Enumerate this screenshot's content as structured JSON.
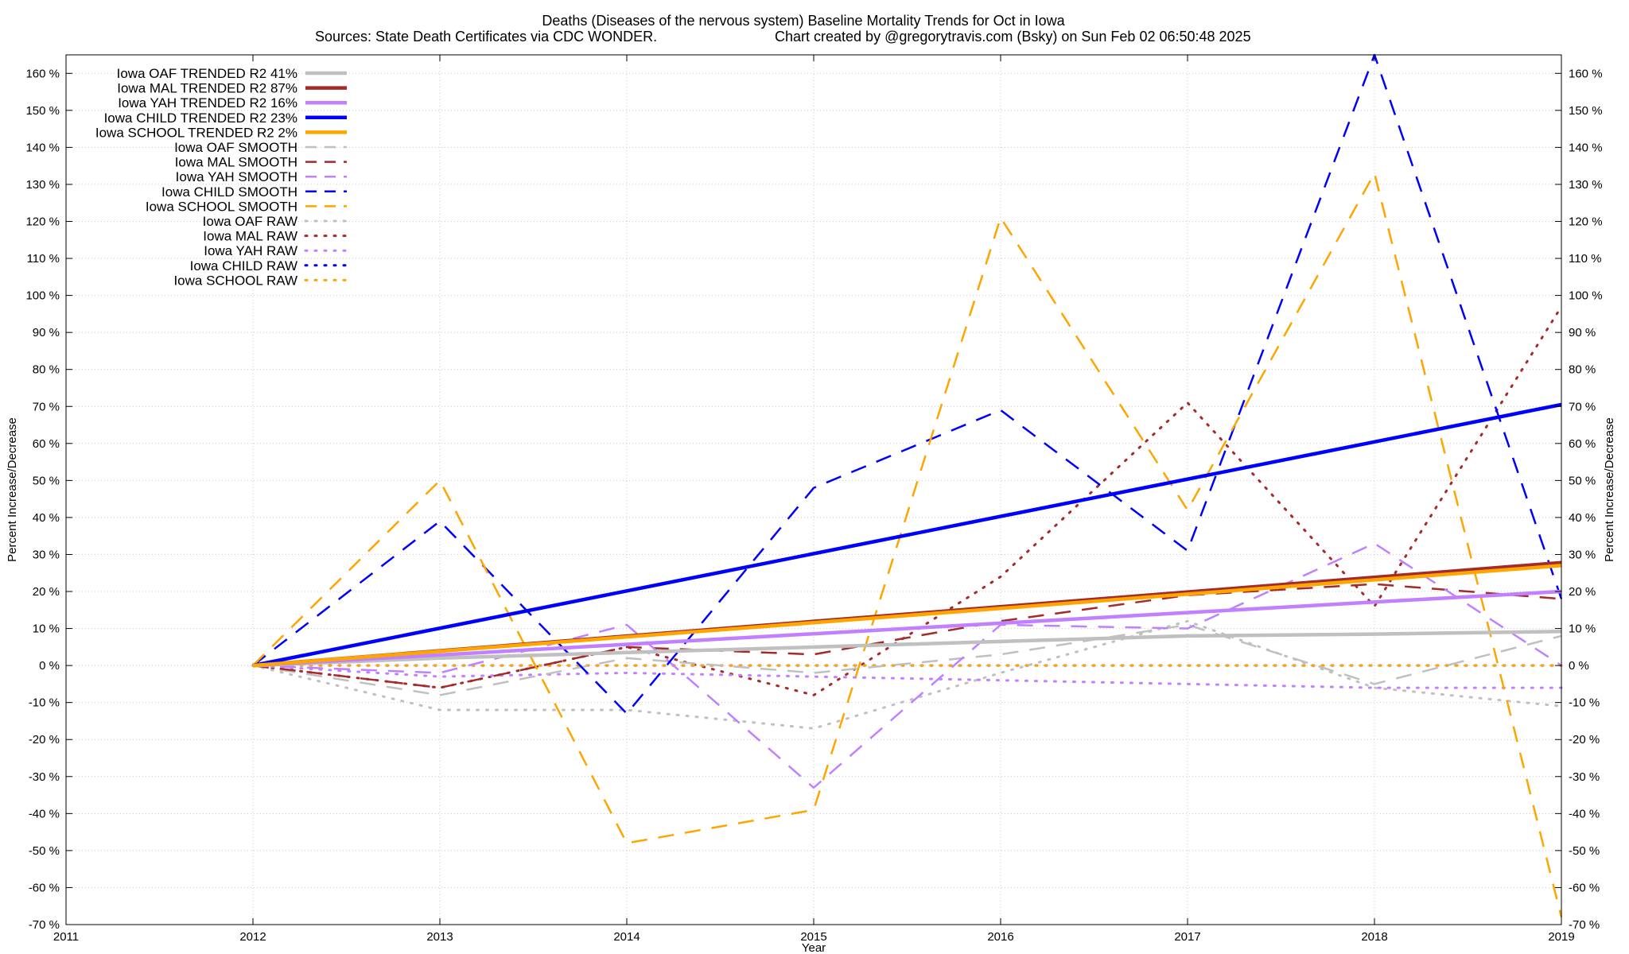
{
  "chart_data": {
    "type": "line",
    "title": "Deaths (Diseases of the nervous system)  Baseline Mortality Trends for Oct in Iowa",
    "subtitle_left": "Sources: State Death Certificates via CDC WONDER.",
    "subtitle_right": "Chart created by @gregorytravis.com (Bsky) on Sun Feb 02 06:50:48 2025",
    "xlabel": "Year",
    "ylabel_left": "Percent Increase/Decrease",
    "ylabel_right": "Percent Increase/Decrease",
    "xlim": [
      2011,
      2019
    ],
    "ylim": [
      -70,
      165
    ],
    "x_ticks": [
      2011,
      2012,
      2013,
      2014,
      2015,
      2016,
      2017,
      2018,
      2019
    ],
    "y_ticks": [
      -70,
      -60,
      -50,
      -40,
      -30,
      -20,
      -10,
      0,
      10,
      20,
      30,
      40,
      50,
      60,
      70,
      80,
      90,
      100,
      110,
      120,
      130,
      140,
      150,
      160
    ],
    "y_tick_suffix": " %",
    "grid": true,
    "legend_position": "top-left",
    "series": [
      {
        "name": "Iowa OAF TRENDED R2  41%",
        "style": "solid",
        "color": "#c0c0c0",
        "x": [
          2012,
          2013,
          2014,
          2015,
          2016,
          2017,
          2018,
          2019
        ],
        "y": [
          0,
          2,
          3.5,
          5,
          6.5,
          8,
          8.5,
          9.2
        ]
      },
      {
        "name": "Iowa MAL TRENDED R2  87%",
        "style": "solid",
        "color": "#a52a2a",
        "x": [
          2012,
          2019
        ],
        "y": [
          0,
          27.8
        ]
      },
      {
        "name": "Iowa YAH TRENDED R2  16%",
        "style": "solid",
        "color": "#c080ff",
        "x": [
          2012,
          2019
        ],
        "y": [
          0,
          20
        ]
      },
      {
        "name": "Iowa CHILD TRENDED R2  23%",
        "style": "solid",
        "color": "#0000ff",
        "x": [
          2012,
          2019
        ],
        "y": [
          0,
          70.5
        ]
      },
      {
        "name": "Iowa SCHOOL TRENDED R2   2%",
        "style": "solid",
        "color": "#ffa500",
        "x": [
          2012,
          2019
        ],
        "y": [
          0,
          27
        ]
      },
      {
        "name": "Iowa OAF SMOOTH",
        "style": "dashed",
        "color": "#c0c0c0",
        "x": [
          2012,
          2013,
          2014,
          2015,
          2016,
          2017,
          2018,
          2019
        ],
        "y": [
          0,
          -8,
          2,
          -2,
          3,
          11,
          -5,
          8
        ]
      },
      {
        "name": "Iowa MAL SMOOTH",
        "style": "dashed",
        "color": "#a52a2a",
        "x": [
          2012,
          2013,
          2014,
          2015,
          2016,
          2017,
          2018,
          2019
        ],
        "y": [
          0,
          -6,
          5,
          3,
          12,
          19,
          22,
          18
        ]
      },
      {
        "name": "Iowa YAH SMOOTH",
        "style": "dashed",
        "color": "#c080ff",
        "x": [
          2012,
          2013,
          2014,
          2015,
          2016,
          2017,
          2018,
          2019
        ],
        "y": [
          0,
          -2,
          11,
          -33,
          11,
          10,
          33,
          0
        ]
      },
      {
        "name": "Iowa CHILD SMOOTH",
        "style": "dashed",
        "color": "#0000ff",
        "x": [
          2012,
          2013,
          2014,
          2015,
          2016,
          2017,
          2018,
          2019
        ],
        "y": [
          0,
          39,
          -13,
          48,
          69,
          31,
          165,
          18
        ]
      },
      {
        "name": "Iowa SCHOOL SMOOTH",
        "style": "dashed",
        "color": "#ffa500",
        "x": [
          2012,
          2013,
          2014,
          2015,
          2016,
          2017,
          2018,
          2019
        ],
        "y": [
          0,
          50,
          -48,
          -39,
          121,
          42,
          133,
          -68
        ]
      },
      {
        "name": "Iowa OAF RAW",
        "style": "dotted",
        "color": "#c0c0c0",
        "x": [
          2012,
          2013,
          2014,
          2015,
          2016,
          2017,
          2018,
          2019
        ],
        "y": [
          0,
          -12,
          -12,
          -17,
          -2,
          12,
          -6,
          -11
        ]
      },
      {
        "name": "Iowa MAL RAW",
        "style": "dotted",
        "color": "#a52a2a",
        "x": [
          2012,
          2013,
          2014,
          2015,
          2016,
          2017,
          2018,
          2019
        ],
        "y": [
          0,
          -6,
          5,
          -8,
          24,
          71,
          16,
          97
        ]
      },
      {
        "name": "Iowa YAH RAW",
        "style": "dotted",
        "color": "#c080ff",
        "x": [
          2012,
          2013,
          2014,
          2015,
          2016,
          2017,
          2018,
          2019
        ],
        "y": [
          0,
          -3,
          -2,
          -3,
          -4,
          -5,
          -6,
          -6
        ]
      },
      {
        "name": "Iowa CHILD RAW",
        "style": "dotted",
        "color": "#0000ff",
        "x": [
          2012,
          2013,
          2014,
          2015,
          2016,
          2017,
          2018,
          2019
        ],
        "y": [
          0,
          0,
          0,
          0,
          0,
          0,
          0,
          0
        ]
      },
      {
        "name": "Iowa SCHOOL RAW",
        "style": "dotted",
        "color": "#ffa500",
        "x": [
          2012,
          2013,
          2014,
          2015,
          2016,
          2017,
          2018,
          2019
        ],
        "y": [
          0,
          0,
          0,
          0,
          0,
          0,
          0,
          0
        ]
      }
    ]
  }
}
